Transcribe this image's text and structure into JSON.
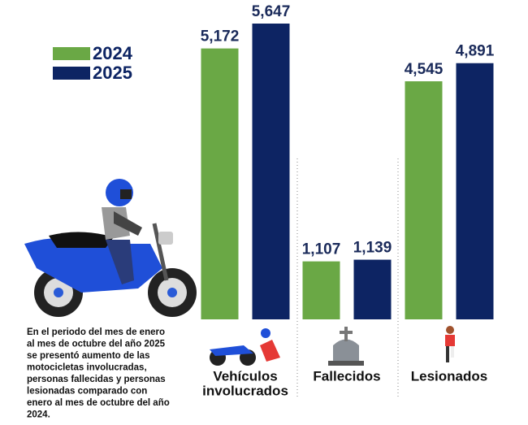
{
  "chart_data": {
    "type": "bar",
    "categories": [
      [
        "Vehículos",
        "involucrados"
      ],
      [
        "Fallecidos"
      ],
      [
        "Lesionados"
      ]
    ],
    "series": [
      {
        "name": "2024",
        "color": "#6aa845",
        "values": [
          5172,
          1107,
          4545
        ],
        "value_labels": [
          "5,172",
          "1,107",
          "4,545"
        ]
      },
      {
        "name": "2025",
        "color": "#0d2463",
        "values": [
          5647,
          1139,
          4891
        ],
        "value_labels": [
          "5,647",
          "1,139",
          "4,891"
        ]
      }
    ],
    "note_lines": [
      "En el periodo del mes de enero",
      "al mes de octubre del año 2025",
      "se presentó aumento de las",
      "motocicletas involucradas,",
      "personas fallecidas y personas",
      "lesionadas comparado con",
      "enero al mes de octubre del año",
      "2024."
    ]
  }
}
